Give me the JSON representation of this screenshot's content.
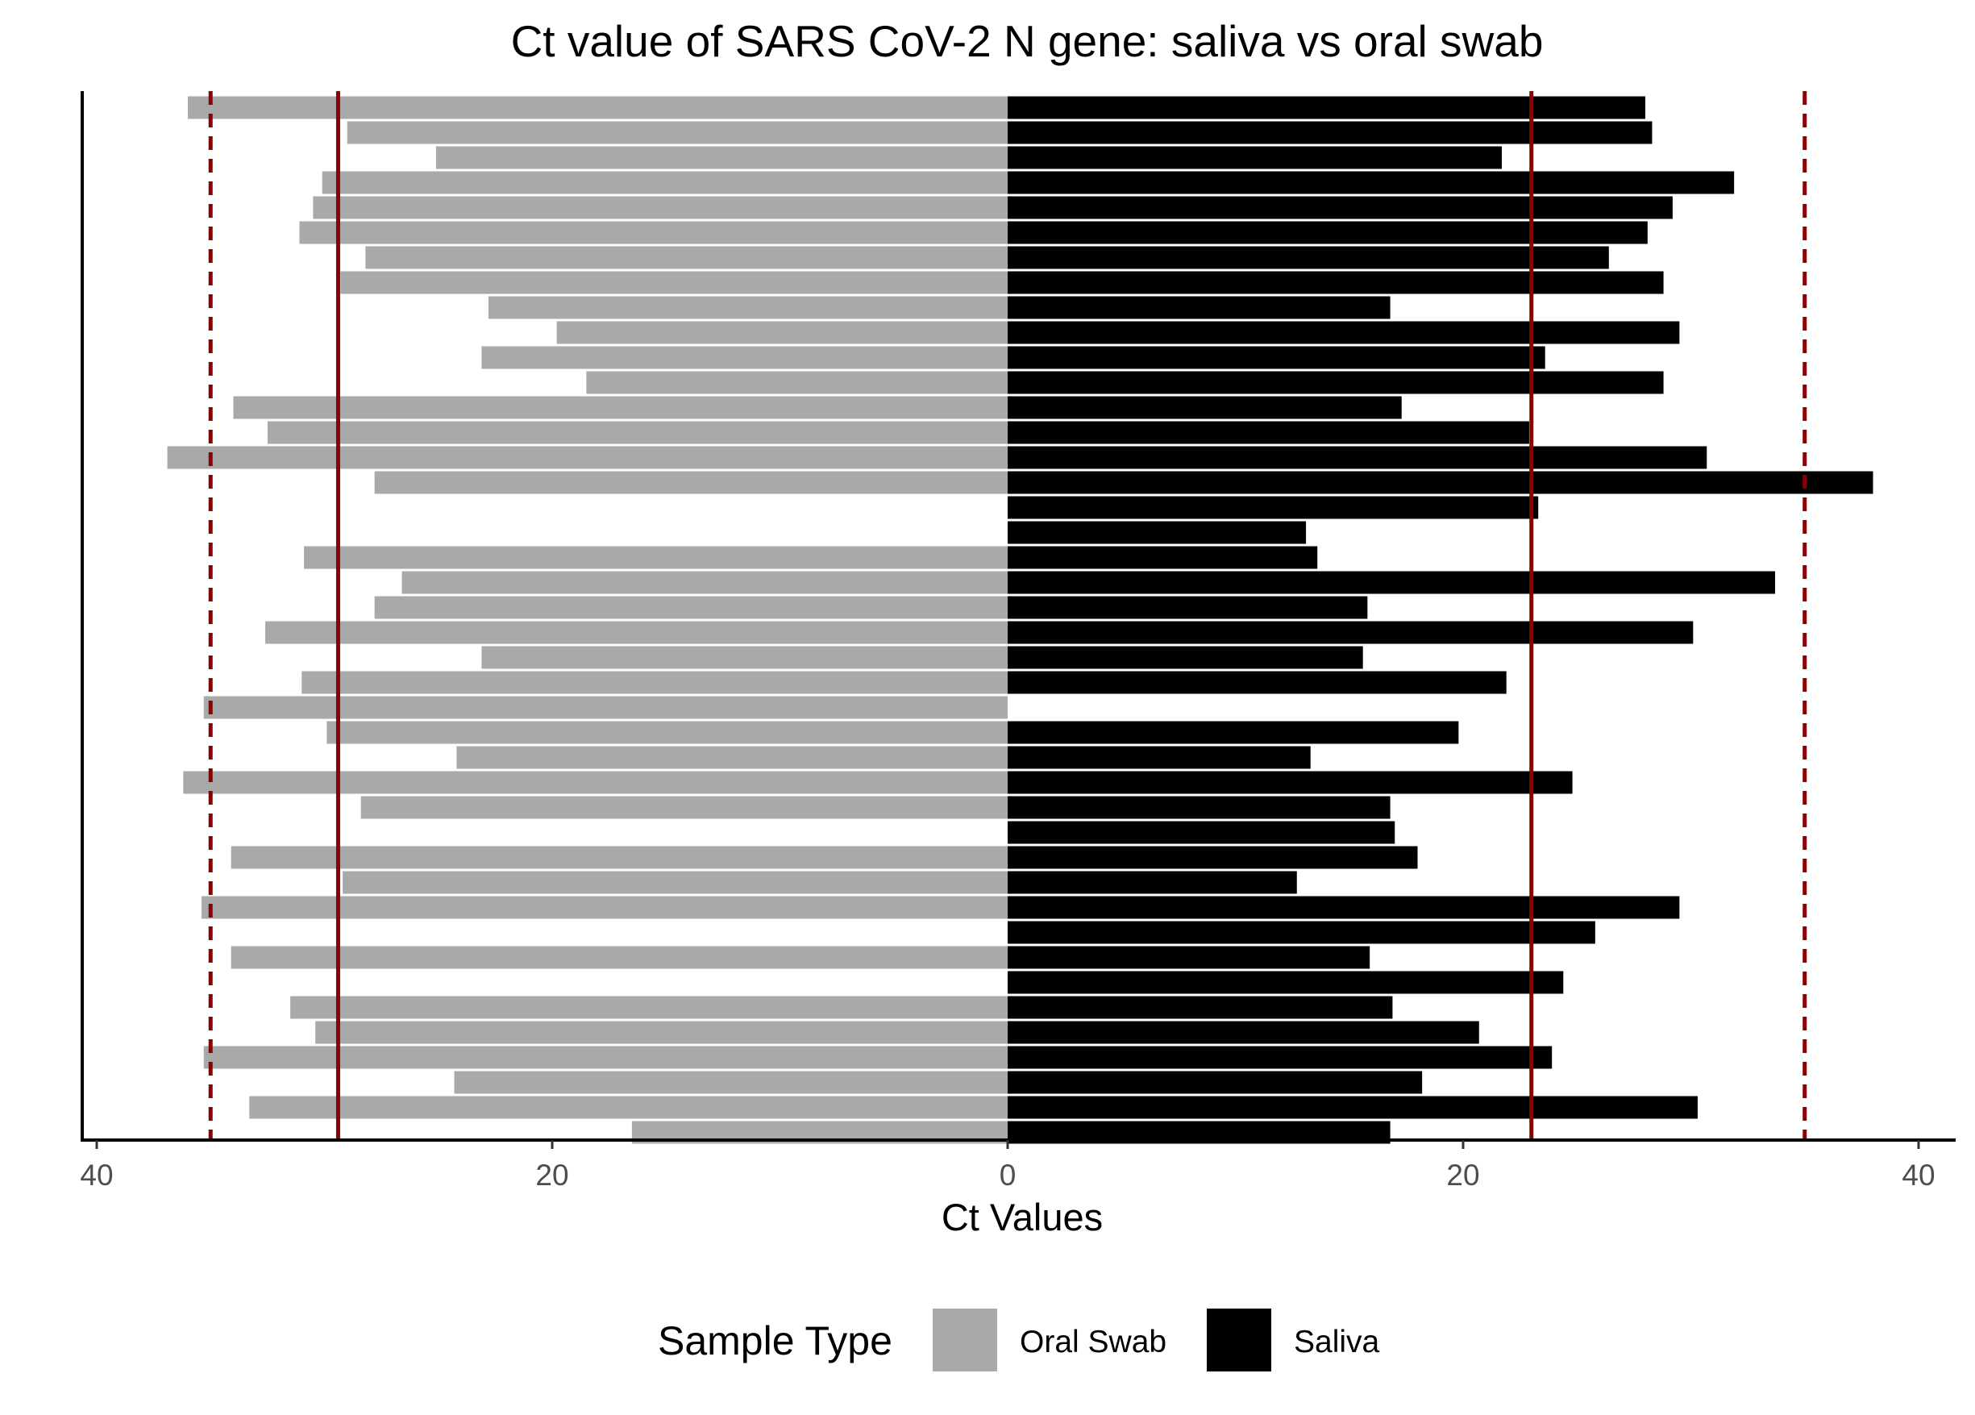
{
  "chart_data": {
    "type": "bar",
    "orientation": "horizontal-diverging",
    "title": "Ct value of SARS CoV-2 N gene: saliva vs oral swab",
    "xlabel": "Ct Values",
    "ylabel": "",
    "xlim": [
      -40.5,
      41
    ],
    "x_tick_values": [
      -40,
      -20,
      0,
      20,
      40
    ],
    "x_tick_labels": [
      "40",
      "20",
      "0",
      "20",
      "40"
    ],
    "grid": false,
    "legend": {
      "title": "Sample Type",
      "placement": "bottom",
      "entries": [
        {
          "label": "Oral Swab",
          "color": "#a9a9a9"
        },
        {
          "label": "Saliva",
          "color": "#000000"
        }
      ]
    },
    "series": [
      {
        "name": "Oral Swab",
        "color": "#a9a9a9",
        "direction": "left",
        "values": [
          36.0,
          29.0,
          25.1,
          30.1,
          30.5,
          31.1,
          28.2,
          29.3,
          22.8,
          19.8,
          23.1,
          18.5,
          34.0,
          32.5,
          36.9,
          27.8,
          0,
          0,
          30.9,
          26.6,
          27.8,
          32.6,
          23.1,
          31.0,
          35.3,
          29.9,
          24.2,
          36.2,
          28.4,
          0,
          34.1,
          29.2,
          35.4,
          0,
          34.1,
          0,
          31.5,
          30.4,
          35.3,
          24.3,
          33.3,
          16.5
        ]
      },
      {
        "name": "Saliva",
        "color": "#000000",
        "direction": "right",
        "values": [
          28.0,
          28.3,
          21.7,
          31.9,
          29.2,
          28.1,
          26.4,
          28.8,
          16.8,
          29.5,
          23.6,
          28.8,
          17.3,
          22.9,
          30.7,
          38.0,
          23.3,
          13.1,
          13.6,
          33.7,
          15.8,
          30.1,
          15.6,
          21.9,
          0,
          19.8,
          13.3,
          24.8,
          16.8,
          17.0,
          18.0,
          12.7,
          29.5,
          25.8,
          15.9,
          24.4,
          16.9,
          20.7,
          23.9,
          18.2,
          30.3,
          16.8
        ]
      }
    ],
    "reference_lines": [
      {
        "x": -35.0,
        "style": "dashed",
        "color": "#8b0000"
      },
      {
        "x": -29.4,
        "style": "solid",
        "color": "#8b0000"
      },
      {
        "x": 23.0,
        "style": "solid",
        "color": "#8b0000"
      },
      {
        "x": 35.0,
        "style": "dashed",
        "color": "#8b0000"
      }
    ]
  }
}
